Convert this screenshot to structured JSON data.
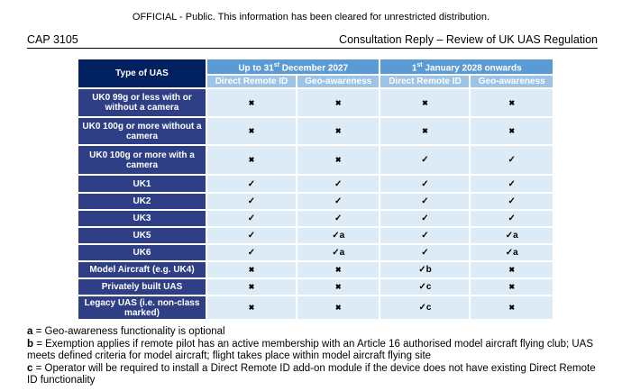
{
  "classification": "OFFICIAL - Public. This information has been cleared for unrestricted distribution.",
  "header": {
    "left": "CAP 3105",
    "right": "Consultation Reply – Review of UK UAS Regulation"
  },
  "table": {
    "corner": "Type of UAS",
    "periods": [
      {
        "pre": "Up to 31",
        "sup": "st",
        "post": " December 2027"
      },
      {
        "pre": "1",
        "sup": "st",
        "post": " January 2028 onwards"
      }
    ],
    "subcols": [
      "Direct Remote ID",
      "Geo-awareness",
      "Direct Remote ID",
      "Geo-awareness"
    ],
    "rows": [
      {
        "type": "UK0 99g or less with or without a camera",
        "cells": [
          "✖",
          "✖",
          "✖",
          "✖"
        ]
      },
      {
        "type": "UK0 100g or more without a camera",
        "cells": [
          "✖",
          "✖",
          "✖",
          "✖"
        ]
      },
      {
        "type": "UK0 100g or more with a camera",
        "cells": [
          "✖",
          "✖",
          "✓",
          "✓"
        ]
      },
      {
        "type": "UK1",
        "cells": [
          "✓",
          "✓",
          "✓",
          "✓"
        ]
      },
      {
        "type": "UK2",
        "cells": [
          "✓",
          "✓",
          "✓",
          "✓"
        ]
      },
      {
        "type": "UK3",
        "cells": [
          "✓",
          "✓",
          "✓",
          "✓"
        ]
      },
      {
        "type": "UK5",
        "cells": [
          "✓",
          "✓a",
          "✓",
          "✓a"
        ]
      },
      {
        "type": "UK6",
        "cells": [
          "✓",
          "✓a",
          "✓",
          "✓a"
        ]
      },
      {
        "type": "Model Aircraft (e.g. UK4)",
        "cells": [
          "✖",
          "✖",
          "✓b",
          "✖"
        ]
      },
      {
        "type": "Privately built UAS",
        "cells": [
          "✖",
          "✖",
          "✓c",
          "✖"
        ]
      },
      {
        "type": "Legacy UAS (i.e. non-class marked)",
        "cells": [
          "✖",
          "✖",
          "✓c",
          "✖"
        ]
      }
    ]
  },
  "notes": [
    {
      "key": "a",
      "text": " = Geo-awareness functionality is optional"
    },
    {
      "key": "b",
      "text": " = Exemption applies if remote pilot has an active membership with an Article 16 authorised model aircraft flying club; UAS meets defined criteria for model aircraft; flight takes place within model aircraft flying site"
    },
    {
      "key": "c",
      "text": " = Operator will be required to install a Direct Remote ID add-on module if the device does not have existing Direct Remote ID functionality"
    }
  ]
}
